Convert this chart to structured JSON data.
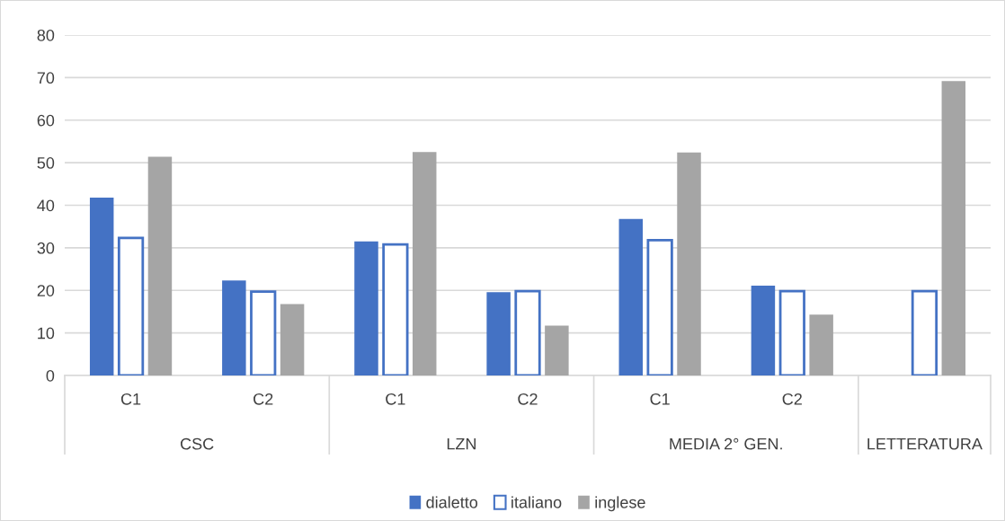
{
  "chart_data": {
    "type": "bar",
    "categories": [
      "C1",
      "C2",
      "C1",
      "C2",
      "C1",
      "C2",
      null
    ],
    "series": [
      {
        "name": "dialetto",
        "color": "#4472c4",
        "values": [
          41.8,
          22.3,
          31.5,
          19.6,
          36.8,
          21.1,
          null
        ]
      },
      {
        "name": "italiano",
        "color": "#4472c4",
        "values": [
          32.3,
          19.7,
          30.8,
          19.8,
          31.8,
          19.8,
          19.8
        ]
      },
      {
        "name": "inglese",
        "color": "#a5a5a5",
        "values": [
          51.4,
          16.8,
          52.5,
          11.7,
          52.4,
          14.3,
          69.2
        ]
      }
    ],
    "annotations": [
      "CSC",
      "LZN",
      "MEDIA 2° GEN.",
      "LETTERATURA"
    ],
    "ylim": [
      0,
      80
    ],
    "yticks": [
      0,
      10,
      20,
      30,
      40,
      50,
      60,
      70,
      80
    ],
    "grid": "y",
    "legend": "bottom"
  }
}
